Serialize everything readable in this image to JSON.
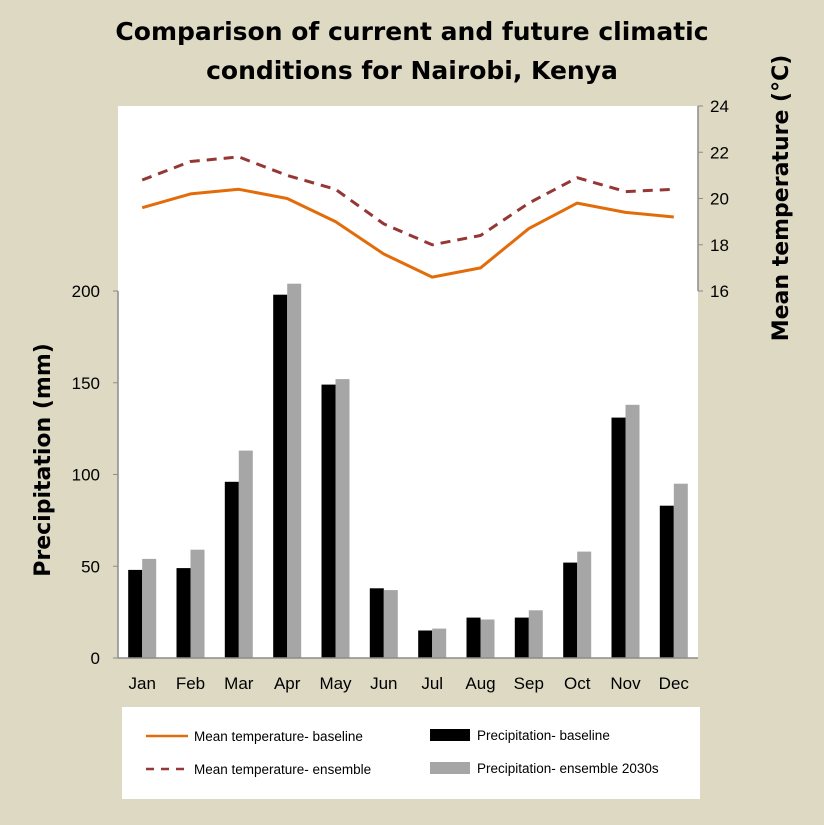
{
  "chart_data": {
    "type": "bar",
    "title": "Comparison of current and future climatic conditions for Nairobi, Kenya",
    "title_lines": [
      "Comparison of current and future climatic",
      "conditions for Nairobi, Kenya"
    ],
    "categories": [
      "Jan",
      "Feb",
      "Mar",
      "Apr",
      "May",
      "Jun",
      "Jul",
      "Aug",
      "Sep",
      "Oct",
      "Nov",
      "Dec"
    ],
    "y_left": {
      "label": "Precipitation (mm)",
      "ylim": [
        0,
        200
      ],
      "ticks": [
        "0",
        "50",
        "100",
        "150",
        "200"
      ]
    },
    "y_right": {
      "label": "Mean temperature (°C)",
      "ylim": [
        16,
        24
      ],
      "ticks": [
        "16",
        "18",
        "20",
        "22",
        "24"
      ]
    },
    "bar_series": [
      {
        "name": "Precipitation- baseline",
        "color": "#000000",
        "values": [
          48,
          49,
          96,
          198,
          149,
          38,
          15,
          22,
          22,
          52,
          131,
          83
        ]
      },
      {
        "name": "Precipitation- ensemble 2030s",
        "color": "#a6a6a6",
        "values": [
          54,
          59,
          113,
          204,
          152,
          37,
          16,
          21,
          26,
          58,
          138,
          95
        ]
      }
    ],
    "line_series": [
      {
        "name": "Mean temperature- baseline",
        "color": "#e36c0a",
        "style": "solid",
        "values": [
          19.6,
          20.2,
          20.4,
          20.0,
          19.0,
          17.6,
          16.6,
          17.0,
          18.7,
          19.8,
          19.4,
          19.2
        ]
      },
      {
        "name": "Mean temperature- ensemble",
        "color": "#953735",
        "style": "dashed",
        "values": [
          20.8,
          21.6,
          21.8,
          21.0,
          20.4,
          18.9,
          18.0,
          18.4,
          19.8,
          20.9,
          20.3,
          20.4
        ]
      }
    ],
    "legend_position": "bottom",
    "grid": false
  }
}
